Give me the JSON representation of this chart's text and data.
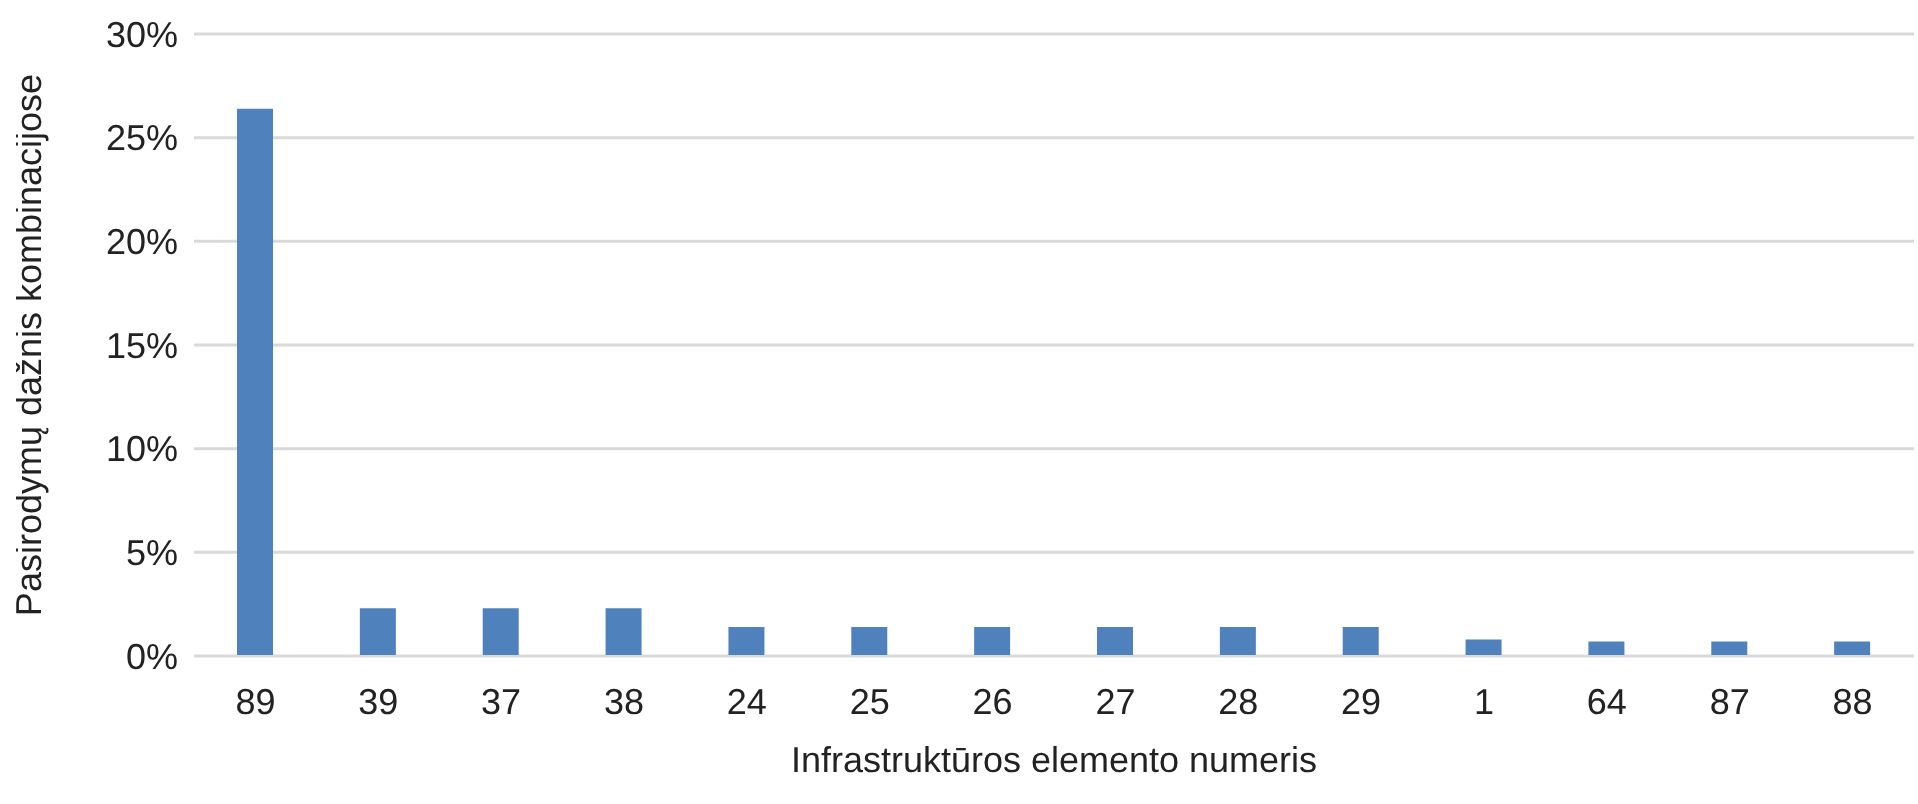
{
  "chart_data": {
    "type": "bar",
    "xlabel": "Infrastruktūros elemento numeris",
    "ylabel": "Pasirodymų dažnis kombinacijose",
    "categories": [
      "89",
      "39",
      "37",
      "38",
      "24",
      "25",
      "26",
      "27",
      "28",
      "29",
      "1",
      "64",
      "87",
      "88"
    ],
    "values": [
      26.4,
      2.3,
      2.3,
      2.3,
      1.4,
      1.4,
      1.4,
      1.4,
      1.4,
      1.4,
      0.8,
      0.7,
      0.7,
      0.7
    ],
    "color": "#4f81bd",
    "ylim": [
      0,
      30
    ],
    "yticks": [
      {
        "value": 0,
        "label": "0%"
      },
      {
        "value": 5,
        "label": "5%"
      },
      {
        "value": 10,
        "label": "10%"
      },
      {
        "value": 15,
        "label": "15%"
      },
      {
        "value": 20,
        "label": "20%"
      },
      {
        "value": 25,
        "label": "25%"
      },
      {
        "value": 30,
        "label": "30%"
      }
    ],
    "grid": "y"
  }
}
